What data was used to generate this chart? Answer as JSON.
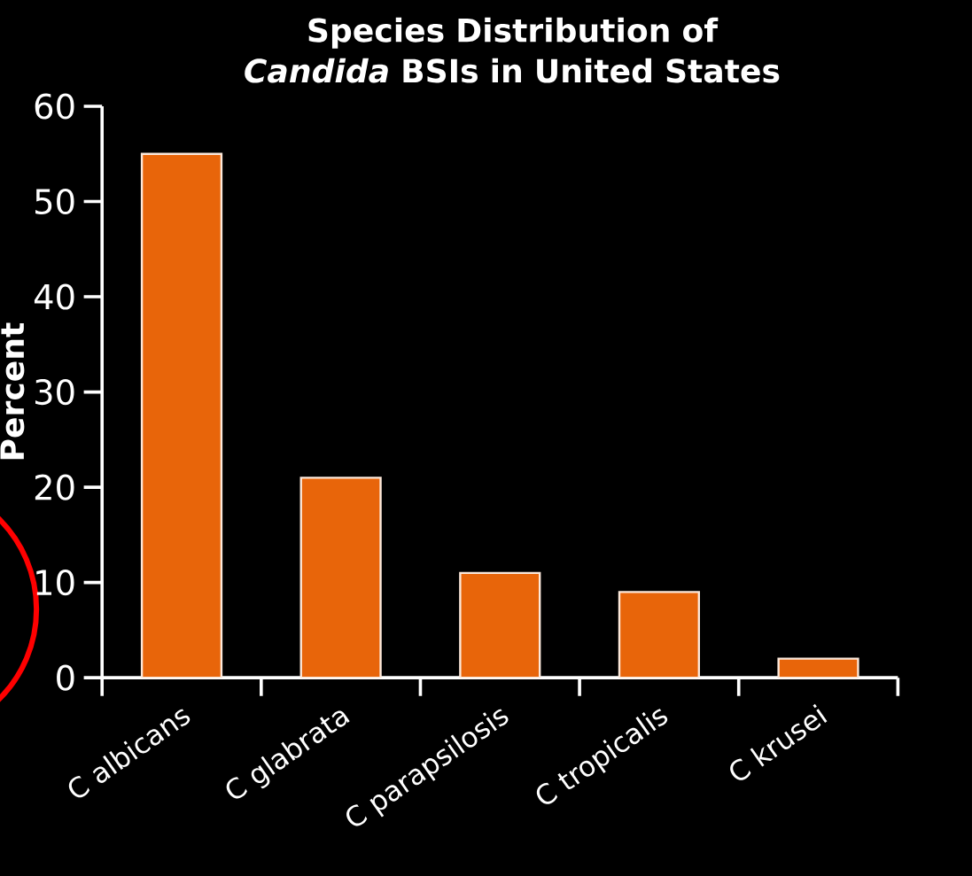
{
  "chart_data": {
    "type": "bar",
    "title": "Species Distribution of *Candida* BSIs in United States",
    "ylabel": "Percent",
    "categories": [
      "C albicans",
      "C glabrata",
      "C parapsilosis",
      "C tropicalis",
      "C krusei"
    ],
    "values": [
      55,
      21,
      11,
      9,
      2
    ],
    "color": "#e8650a",
    "ylim": [
      0,
      60
    ],
    "yticks": [
      0,
      10,
      20,
      30,
      40,
      50,
      60
    ],
    "grid": false
  }
}
